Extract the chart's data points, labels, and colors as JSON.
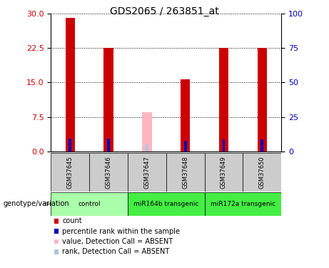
{
  "title": "GDS2065 / 263851_at",
  "samples": [
    "GSM37645",
    "GSM37646",
    "GSM37647",
    "GSM37648",
    "GSM37649",
    "GSM37650"
  ],
  "count_values": [
    29.0,
    22.5,
    null,
    15.7,
    22.5,
    22.5
  ],
  "rank_values": [
    9.0,
    9.0,
    null,
    7.5,
    8.5,
    8.5
  ],
  "absent_value": [
    null,
    null,
    8.5,
    null,
    null,
    null
  ],
  "absent_rank": [
    null,
    null,
    5.0,
    null,
    null,
    null
  ],
  "ylim_left": [
    0,
    30
  ],
  "ylim_right": [
    0,
    100
  ],
  "yticks_left": [
    0,
    7.5,
    15,
    22.5,
    30
  ],
  "yticks_right": [
    0,
    25,
    50,
    75,
    100
  ],
  "count_bar_width": 0.25,
  "rank_bar_width": 0.07,
  "count_color": "#cc0000",
  "rank_color": "#0000bb",
  "absent_count_color": "#ffb6c1",
  "absent_rank_color": "#b0c4de",
  "left_label_color": "#cc0000",
  "right_label_color": "#0000bb",
  "sample_box_color": "#cccccc",
  "group_ranges": [
    {
      "start": 0,
      "end": 1,
      "label": "control",
      "color": "#aaffaa"
    },
    {
      "start": 2,
      "end": 3,
      "label": "miR164b transgenic",
      "color": "#44ee44"
    },
    {
      "start": 4,
      "end": 5,
      "label": "miR172a transgenic",
      "color": "#44ee44"
    }
  ],
  "legend_items": [
    {
      "color": "#cc0000",
      "label": "count"
    },
    {
      "color": "#0000bb",
      "label": "percentile rank within the sample"
    },
    {
      "color": "#ffb6c1",
      "label": "value, Detection Call = ABSENT"
    },
    {
      "color": "#b0c4de",
      "label": "rank, Detection Call = ABSENT"
    }
  ]
}
